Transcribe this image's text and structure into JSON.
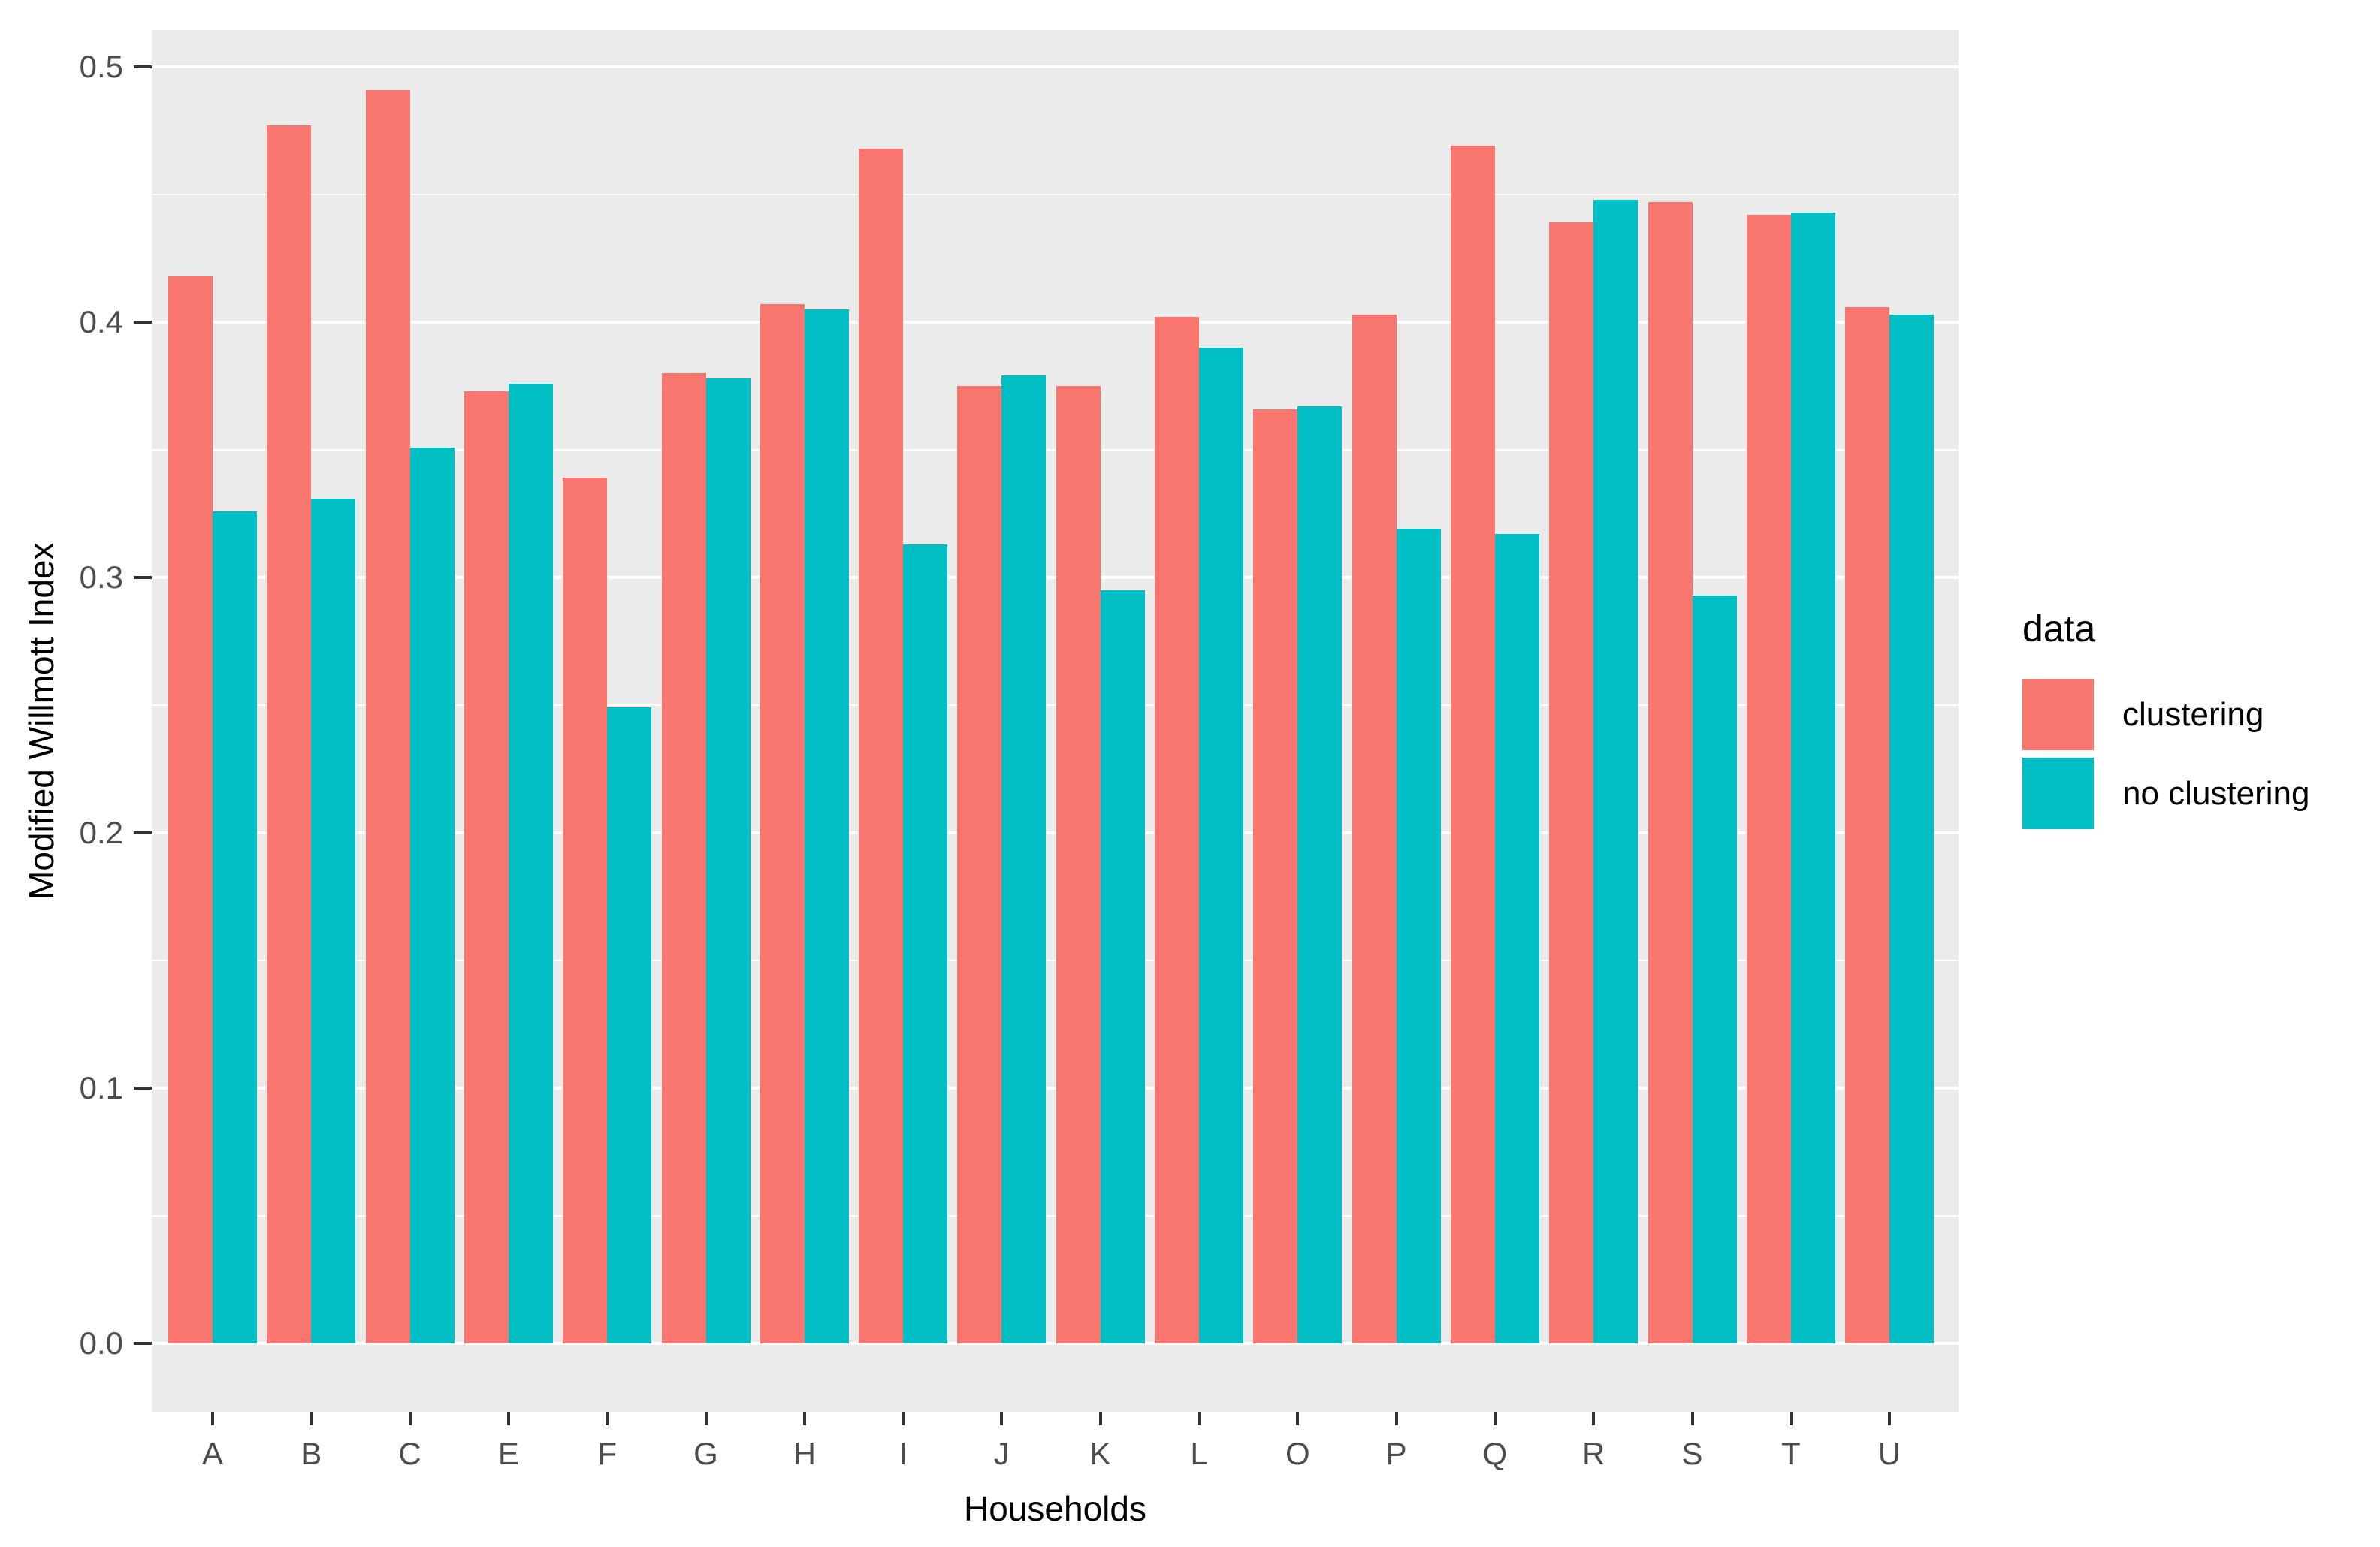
{
  "chart_data": {
    "type": "bar",
    "title": "",
    "xlabel": "Households",
    "ylabel": "Modified Willmott Index",
    "categories": [
      "A",
      "B",
      "C",
      "E",
      "F",
      "G",
      "H",
      "I",
      "J",
      "K",
      "L",
      "O",
      "P",
      "Q",
      "R",
      "S",
      "T",
      "U"
    ],
    "series": [
      {
        "name": "clustering",
        "color": "#F8766D",
        "values": [
          0.418,
          0.477,
          0.491,
          0.373,
          0.339,
          0.38,
          0.407,
          0.468,
          0.375,
          0.375,
          0.402,
          0.366,
          0.403,
          0.469,
          0.439,
          0.447,
          0.442,
          0.406
        ]
      },
      {
        "name": "no clustering",
        "color": "#00BFC4",
        "values": [
          0.326,
          0.331,
          0.351,
          0.376,
          0.249,
          0.378,
          0.405,
          0.313,
          0.379,
          0.295,
          0.39,
          0.367,
          0.319,
          0.317,
          0.448,
          0.293,
          0.443,
          0.403
        ]
      }
    ],
    "ylim": [
      0.0,
      0.5
    ],
    "yticks": [
      0.0,
      0.1,
      0.2,
      0.3,
      0.4,
      0.5
    ],
    "ytick_labels": [
      "0.0",
      "0.1",
      "0.2",
      "0.3",
      "0.4",
      "0.5"
    ],
    "minor_gridlines": [
      0.05,
      0.15,
      0.25,
      0.35,
      0.45
    ],
    "grid": "on",
    "legend_position": "right"
  },
  "legend": {
    "title": "data",
    "items": [
      {
        "label": "clustering",
        "color": "#F8766D"
      },
      {
        "label": "no clustering",
        "color": "#00BFC4"
      }
    ]
  },
  "axes": {
    "x_title": "Households",
    "y_title": "Modified Willmott Index"
  },
  "colors": {
    "panel": "#EBEBEB",
    "gridline": "#FFFFFF",
    "tick": "#333333",
    "tick_label": "#4D4D4D",
    "axis_title": "#000000",
    "background": "#FFFFFF"
  }
}
